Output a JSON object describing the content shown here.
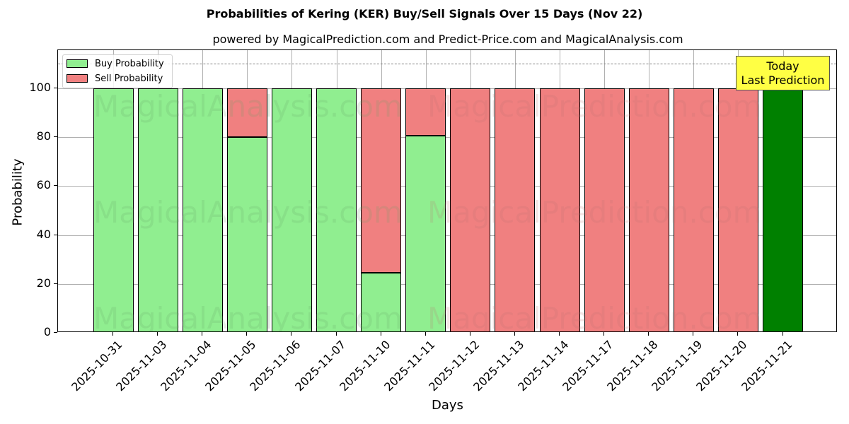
{
  "chart_data": {
    "type": "bar",
    "stacked": true,
    "title": "Probabilities of Kering (KER) Buy/Sell Signals Over 15 Days (Nov 22)",
    "subtitle": "powered by MagicalPrediction.com and Predict-Price.com and MagicalAnalysis.com",
    "xlabel": "Days",
    "ylabel": "Probability",
    "ylim": [
      0,
      115
    ],
    "yticks": [
      0,
      20,
      40,
      60,
      80,
      100
    ],
    "grid": true,
    "legend_position": "upper left",
    "reference_line": {
      "y": 110,
      "style": "dashed",
      "color": "#808080"
    },
    "categories": [
      "2025-10-31",
      "2025-11-03",
      "2025-11-04",
      "2025-11-05",
      "2025-11-06",
      "2025-11-07",
      "2025-11-10",
      "2025-11-11",
      "2025-11-12",
      "2025-11-13",
      "2025-11-14",
      "2025-11-17",
      "2025-11-18",
      "2025-11-19",
      "2025-11-20",
      "2025-11-21"
    ],
    "series": [
      {
        "name": "Buy Probability",
        "color": "#90ee90",
        "values": [
          100,
          100,
          100,
          80,
          100,
          100,
          24.5,
          80.5,
          0,
          0,
          0,
          0,
          0,
          0,
          0,
          100
        ]
      },
      {
        "name": "Sell Probability",
        "color": "#f08080",
        "values": [
          0,
          0,
          0,
          20,
          0,
          0,
          75.5,
          19.5,
          100,
          100,
          100,
          100,
          100,
          100,
          100,
          0
        ]
      }
    ],
    "highlight": {
      "category": "2025-11-21",
      "color": "#008000",
      "label": "Today\nLast Prediction"
    },
    "annotation": {
      "line1": "Today",
      "line2": "Last Prediction",
      "background": "#ffff44"
    },
    "watermarks": [
      "MagicalAnalysis.com",
      "MagicalPrediction.com"
    ]
  },
  "legend": {
    "buy_label": "Buy Probability",
    "sell_label": "Sell Probability"
  }
}
